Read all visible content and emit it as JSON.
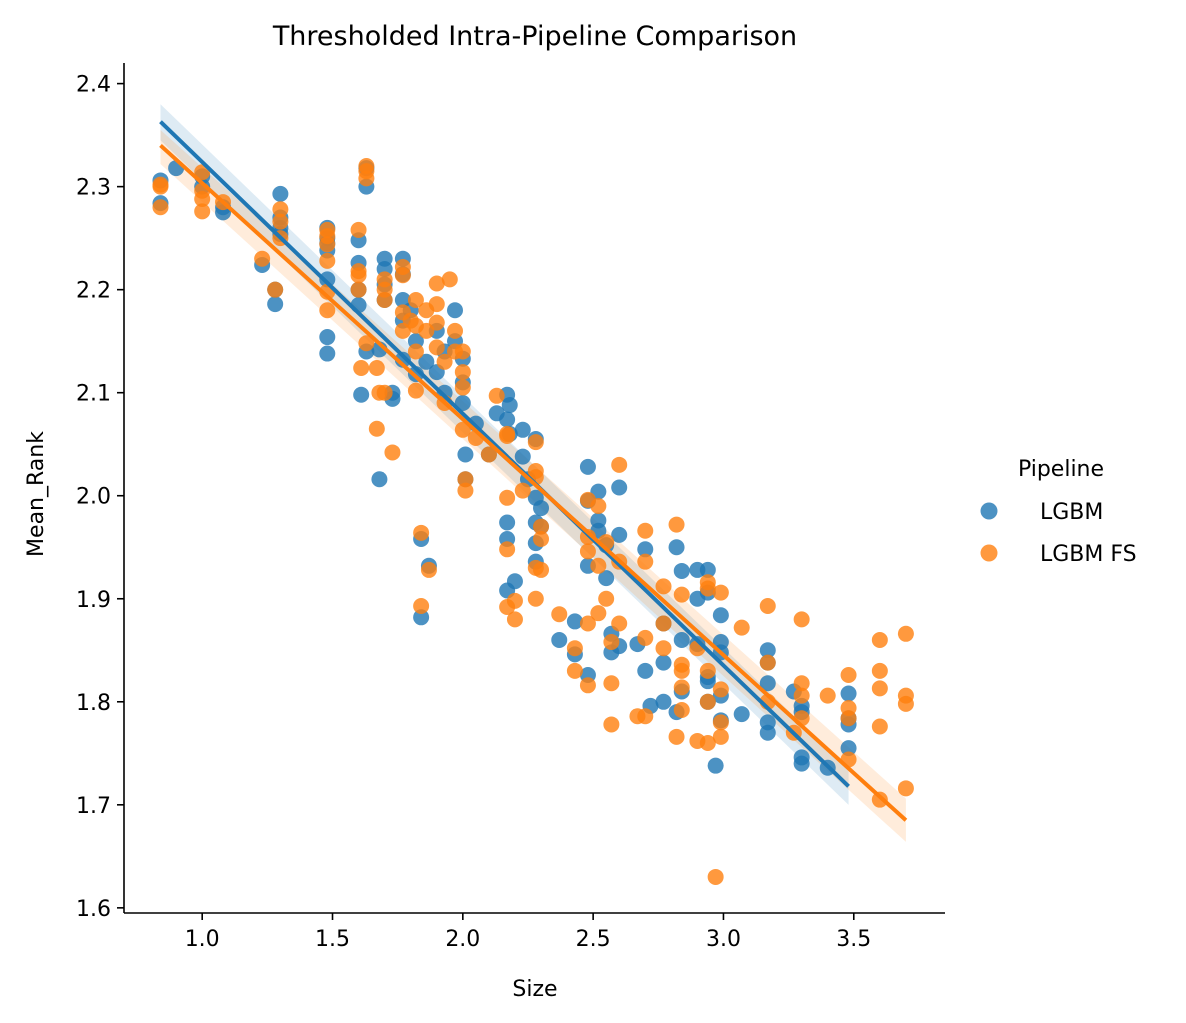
{
  "chart_data": {
    "type": "scatter",
    "title": "Thresholded Intra-Pipeline Comparison",
    "xlabel": "Size",
    "ylabel": "Mean_Rank",
    "xlim": [
      0.7,
      3.85
    ],
    "ylim": [
      1.595,
      2.42
    ],
    "xticks": [
      "1.0",
      "1.5",
      "2.0",
      "2.5",
      "3.0",
      "3.5"
    ],
    "yticks": [
      "1.6",
      "1.7",
      "1.8",
      "1.9",
      "2.0",
      "2.1",
      "2.2",
      "2.3",
      "2.4"
    ],
    "xtick_values": [
      1.0,
      1.5,
      2.0,
      2.5,
      3.0,
      3.5
    ],
    "ytick_values": [
      1.6,
      1.7,
      1.8,
      1.9,
      2.0,
      2.1,
      2.2,
      2.3,
      2.4
    ],
    "grid": false,
    "legend": {
      "title": "Pipeline",
      "placement": "right"
    },
    "series": [
      {
        "name": "LGBM",
        "color": "#1f77b4",
        "regression": {
          "x": [
            0.84,
            3.48
          ],
          "y": [
            2.363,
            1.718
          ],
          "ci_upper_start": 2.38,
          "ci_lower_start": 2.345,
          "ci_upper_end": 1.735,
          "ci_lower_end": 1.7
        },
        "points": [
          [
            0.84,
            2.306
          ],
          [
            0.84,
            2.284
          ],
          [
            0.9,
            2.318
          ],
          [
            1.0,
            2.31
          ],
          [
            1.0,
            2.3
          ],
          [
            1.08,
            2.28
          ],
          [
            1.08,
            2.275
          ],
          [
            1.23,
            2.224
          ],
          [
            1.28,
            2.186
          ],
          [
            1.28,
            2.2
          ],
          [
            1.3,
            2.293
          ],
          [
            1.3,
            2.27
          ],
          [
            1.3,
            2.26
          ],
          [
            1.3,
            2.254
          ],
          [
            1.48,
            2.26
          ],
          [
            1.48,
            2.25
          ],
          [
            1.48,
            2.245
          ],
          [
            1.48,
            2.238
          ],
          [
            1.48,
            2.21
          ],
          [
            1.48,
            2.154
          ],
          [
            1.48,
            2.138
          ],
          [
            1.6,
            2.248
          ],
          [
            1.6,
            2.226
          ],
          [
            1.6,
            2.2
          ],
          [
            1.6,
            2.185
          ],
          [
            1.61,
            2.098
          ],
          [
            1.63,
            2.3
          ],
          [
            1.63,
            2.318
          ],
          [
            1.63,
            2.14
          ],
          [
            1.68,
            2.016
          ],
          [
            1.68,
            2.142
          ],
          [
            1.7,
            2.23
          ],
          [
            1.7,
            2.22
          ],
          [
            1.7,
            2.205
          ],
          [
            1.7,
            2.19
          ],
          [
            1.73,
            2.1
          ],
          [
            1.73,
            2.094
          ],
          [
            1.77,
            2.23
          ],
          [
            1.77,
            2.215
          ],
          [
            1.77,
            2.19
          ],
          [
            1.77,
            2.17
          ],
          [
            1.77,
            2.132
          ],
          [
            1.8,
            2.18
          ],
          [
            1.82,
            2.15
          ],
          [
            1.82,
            2.118
          ],
          [
            1.84,
            1.882
          ],
          [
            1.84,
            1.958
          ],
          [
            1.86,
            2.13
          ],
          [
            1.87,
            1.932
          ],
          [
            1.9,
            2.16
          ],
          [
            1.9,
            2.12
          ],
          [
            1.93,
            2.14
          ],
          [
            1.93,
            2.1
          ],
          [
            1.97,
            2.18
          ],
          [
            1.97,
            2.15
          ],
          [
            2.0,
            2.133
          ],
          [
            2.0,
            2.11
          ],
          [
            2.0,
            2.09
          ],
          [
            2.01,
            2.04
          ],
          [
            2.01,
            2.016
          ],
          [
            2.05,
            2.07
          ],
          [
            2.1,
            2.04
          ],
          [
            2.13,
            2.08
          ],
          [
            2.17,
            2.098
          ],
          [
            2.17,
            2.074
          ],
          [
            2.17,
            1.974
          ],
          [
            2.17,
            1.958
          ],
          [
            2.17,
            1.908
          ],
          [
            2.18,
            2.088
          ],
          [
            2.18,
            2.06
          ],
          [
            2.2,
            1.917
          ],
          [
            2.23,
            2.064
          ],
          [
            2.23,
            2.038
          ],
          [
            2.25,
            2.016
          ],
          [
            2.28,
            2.055
          ],
          [
            2.28,
            1.998
          ],
          [
            2.28,
            1.974
          ],
          [
            2.28,
            1.954
          ],
          [
            2.28,
            1.936
          ],
          [
            2.3,
            1.988
          ],
          [
            2.3,
            1.97
          ],
          [
            2.37,
            1.86
          ],
          [
            2.43,
            1.878
          ],
          [
            2.43,
            1.846
          ],
          [
            2.48,
            2.028
          ],
          [
            2.48,
            1.995
          ],
          [
            2.48,
            1.932
          ],
          [
            2.48,
            1.826
          ],
          [
            2.52,
            2.004
          ],
          [
            2.52,
            1.976
          ],
          [
            2.52,
            1.966
          ],
          [
            2.55,
            1.952
          ],
          [
            2.55,
            1.92
          ],
          [
            2.57,
            1.866
          ],
          [
            2.57,
            1.848
          ],
          [
            2.6,
            2.008
          ],
          [
            2.6,
            1.962
          ],
          [
            2.6,
            1.854
          ],
          [
            2.67,
            1.856
          ],
          [
            2.7,
            1.948
          ],
          [
            2.7,
            1.83
          ],
          [
            2.72,
            1.796
          ],
          [
            2.77,
            1.876
          ],
          [
            2.77,
            1.838
          ],
          [
            2.77,
            1.8
          ],
          [
            2.82,
            1.95
          ],
          [
            2.82,
            1.79
          ],
          [
            2.84,
            1.927
          ],
          [
            2.84,
            1.86
          ],
          [
            2.84,
            1.81
          ],
          [
            2.9,
            1.928
          ],
          [
            2.9,
            1.9
          ],
          [
            2.9,
            1.856
          ],
          [
            2.94,
            1.928
          ],
          [
            2.94,
            1.906
          ],
          [
            2.94,
            1.824
          ],
          [
            2.94,
            1.82
          ],
          [
            2.94,
            1.8
          ],
          [
            2.97,
            1.738
          ],
          [
            2.99,
            1.884
          ],
          [
            2.99,
            1.858
          ],
          [
            2.99,
            1.848
          ],
          [
            2.99,
            1.806
          ],
          [
            2.99,
            1.782
          ],
          [
            3.07,
            1.788
          ],
          [
            3.17,
            1.85
          ],
          [
            3.17,
            1.838
          ],
          [
            3.17,
            1.818
          ],
          [
            3.17,
            1.78
          ],
          [
            3.17,
            1.77
          ],
          [
            3.27,
            1.81
          ],
          [
            3.3,
            1.796
          ],
          [
            3.3,
            1.79
          ],
          [
            3.3,
            1.746
          ],
          [
            3.3,
            1.74
          ],
          [
            3.4,
            1.736
          ],
          [
            3.48,
            1.808
          ],
          [
            3.48,
            1.784
          ],
          [
            3.48,
            1.778
          ],
          [
            3.48,
            1.755
          ]
        ]
      },
      {
        "name": "LGBM FS",
        "color": "#ff7f0e",
        "regression": {
          "x": [
            0.84,
            3.7
          ],
          "y": [
            2.34,
            1.685
          ],
          "ci_upper_start": 2.355,
          "ci_lower_start": 2.322,
          "ci_upper_end": 1.706,
          "ci_lower_end": 1.664
        },
        "points": [
          [
            0.84,
            2.3
          ],
          [
            0.84,
            2.28
          ],
          [
            0.84,
            2.302
          ],
          [
            1.0,
            2.314
          ],
          [
            1.0,
            2.296
          ],
          [
            1.0,
            2.288
          ],
          [
            1.0,
            2.276
          ],
          [
            1.08,
            2.285
          ],
          [
            1.23,
            2.23
          ],
          [
            1.28,
            2.2
          ],
          [
            1.3,
            2.278
          ],
          [
            1.3,
            2.266
          ],
          [
            1.3,
            2.25
          ],
          [
            1.48,
            2.258
          ],
          [
            1.48,
            2.252
          ],
          [
            1.48,
            2.244
          ],
          [
            1.48,
            2.228
          ],
          [
            1.48,
            2.198
          ],
          [
            1.48,
            2.18
          ],
          [
            1.6,
            2.258
          ],
          [
            1.6,
            2.218
          ],
          [
            1.6,
            2.214
          ],
          [
            1.6,
            2.2
          ],
          [
            1.61,
            2.124
          ],
          [
            1.63,
            2.32
          ],
          [
            1.63,
            2.315
          ],
          [
            1.63,
            2.308
          ],
          [
            1.63,
            2.148
          ],
          [
            1.67,
            2.124
          ],
          [
            1.67,
            2.065
          ],
          [
            1.68,
            2.1
          ],
          [
            1.7,
            2.21
          ],
          [
            1.7,
            2.2
          ],
          [
            1.7,
            2.19
          ],
          [
            1.7,
            2.1
          ],
          [
            1.73,
            2.042
          ],
          [
            1.77,
            2.222
          ],
          [
            1.77,
            2.214
          ],
          [
            1.77,
            2.178
          ],
          [
            1.77,
            2.16
          ],
          [
            1.8,
            2.17
          ],
          [
            1.82,
            2.19
          ],
          [
            1.82,
            2.165
          ],
          [
            1.82,
            2.14
          ],
          [
            1.82,
            2.102
          ],
          [
            1.84,
            1.964
          ],
          [
            1.84,
            1.893
          ],
          [
            1.86,
            2.18
          ],
          [
            1.86,
            2.16
          ],
          [
            1.87,
            1.928
          ],
          [
            1.9,
            2.206
          ],
          [
            1.9,
            2.186
          ],
          [
            1.9,
            2.168
          ],
          [
            1.9,
            2.144
          ],
          [
            1.93,
            2.13
          ],
          [
            1.93,
            2.09
          ],
          [
            1.95,
            2.21
          ],
          [
            1.97,
            2.16
          ],
          [
            1.97,
            2.14
          ],
          [
            2.0,
            2.14
          ],
          [
            2.0,
            2.12
          ],
          [
            2.0,
            2.105
          ],
          [
            2.0,
            2.064
          ],
          [
            2.01,
            2.016
          ],
          [
            2.01,
            2.005
          ],
          [
            2.05,
            2.056
          ],
          [
            2.1,
            2.04
          ],
          [
            2.13,
            2.097
          ],
          [
            2.17,
            2.06
          ],
          [
            2.17,
            2.058
          ],
          [
            2.17,
            1.998
          ],
          [
            2.17,
            1.948
          ],
          [
            2.17,
            1.892
          ],
          [
            2.2,
            1.898
          ],
          [
            2.2,
            1.88
          ],
          [
            2.23,
            2.005
          ],
          [
            2.28,
            2.052
          ],
          [
            2.28,
            2.024
          ],
          [
            2.28,
            2.018
          ],
          [
            2.28,
            1.93
          ],
          [
            2.28,
            1.9
          ],
          [
            2.3,
            1.97
          ],
          [
            2.3,
            1.958
          ],
          [
            2.3,
            1.928
          ],
          [
            2.37,
            1.885
          ],
          [
            2.43,
            1.852
          ],
          [
            2.43,
            1.83
          ],
          [
            2.48,
            1.996
          ],
          [
            2.48,
            1.96
          ],
          [
            2.48,
            1.946
          ],
          [
            2.48,
            1.876
          ],
          [
            2.48,
            1.816
          ],
          [
            2.52,
            1.99
          ],
          [
            2.52,
            1.932
          ],
          [
            2.52,
            1.886
          ],
          [
            2.55,
            1.955
          ],
          [
            2.55,
            1.9
          ],
          [
            2.57,
            1.858
          ],
          [
            2.57,
            1.818
          ],
          [
            2.57,
            1.778
          ],
          [
            2.6,
            2.03
          ],
          [
            2.6,
            1.936
          ],
          [
            2.6,
            1.876
          ],
          [
            2.67,
            1.786
          ],
          [
            2.7,
            1.966
          ],
          [
            2.7,
            1.936
          ],
          [
            2.7,
            1.862
          ],
          [
            2.7,
            1.786
          ],
          [
            2.77,
            1.912
          ],
          [
            2.77,
            1.876
          ],
          [
            2.77,
            1.852
          ],
          [
            2.82,
            1.972
          ],
          [
            2.82,
            1.766
          ],
          [
            2.84,
            1.904
          ],
          [
            2.84,
            1.836
          ],
          [
            2.84,
            1.83
          ],
          [
            2.84,
            1.814
          ],
          [
            2.84,
            1.792
          ],
          [
            2.9,
            1.852
          ],
          [
            2.9,
            1.762
          ],
          [
            2.94,
            1.916
          ],
          [
            2.94,
            1.91
          ],
          [
            2.94,
            1.83
          ],
          [
            2.94,
            1.8
          ],
          [
            2.94,
            1.76
          ],
          [
            2.97,
            1.63
          ],
          [
            2.99,
            1.906
          ],
          [
            2.99,
            1.812
          ],
          [
            2.99,
            1.78
          ],
          [
            2.99,
            1.766
          ],
          [
            3.07,
            1.872
          ],
          [
            3.17,
            1.893
          ],
          [
            3.17,
            1.838
          ],
          [
            3.17,
            1.8
          ],
          [
            3.27,
            1.77
          ],
          [
            3.3,
            1.88
          ],
          [
            3.3,
            1.818
          ],
          [
            3.3,
            1.806
          ],
          [
            3.3,
            1.784
          ],
          [
            3.4,
            1.806
          ],
          [
            3.48,
            1.826
          ],
          [
            3.48,
            1.794
          ],
          [
            3.48,
            1.784
          ],
          [
            3.48,
            1.744
          ],
          [
            3.6,
            1.86
          ],
          [
            3.6,
            1.83
          ],
          [
            3.6,
            1.813
          ],
          [
            3.6,
            1.776
          ],
          [
            3.6,
            1.705
          ],
          [
            3.7,
            1.866
          ],
          [
            3.7,
            1.806
          ],
          [
            3.7,
            1.798
          ],
          [
            3.7,
            1.716
          ]
        ]
      }
    ]
  }
}
